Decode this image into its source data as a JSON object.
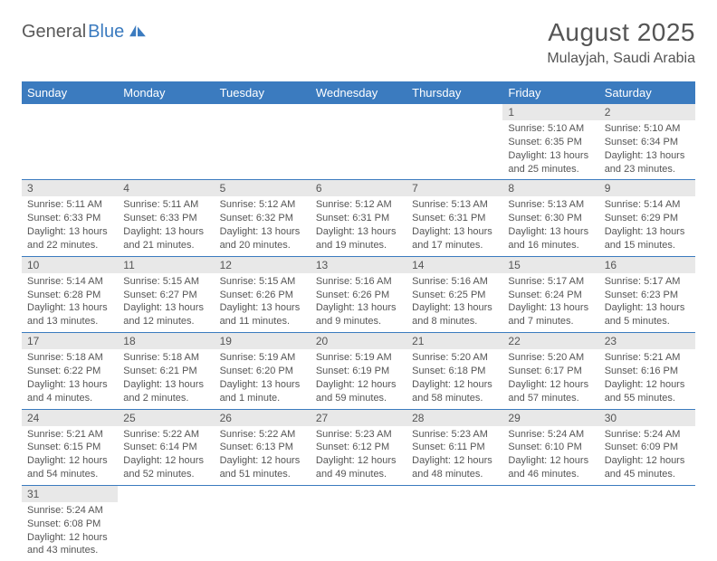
{
  "logo": {
    "part1": "General",
    "part2": "Blue"
  },
  "title": "August 2025",
  "location": "Mulayjah, Saudi Arabia",
  "colors": {
    "header_bg": "#3b7bbf",
    "header_text": "#ffffff",
    "daynum_bg": "#e8e8e8",
    "text": "#555555",
    "border": "#3b7bbf"
  },
  "weekdays": [
    "Sunday",
    "Monday",
    "Tuesday",
    "Wednesday",
    "Thursday",
    "Friday",
    "Saturday"
  ],
  "weeks": [
    [
      null,
      null,
      null,
      null,
      null,
      {
        "n": "1",
        "sunrise": "5:10 AM",
        "sunset": "6:35 PM",
        "daylight": "13 hours and 25 minutes."
      },
      {
        "n": "2",
        "sunrise": "5:10 AM",
        "sunset": "6:34 PM",
        "daylight": "13 hours and 23 minutes."
      }
    ],
    [
      {
        "n": "3",
        "sunrise": "5:11 AM",
        "sunset": "6:33 PM",
        "daylight": "13 hours and 22 minutes."
      },
      {
        "n": "4",
        "sunrise": "5:11 AM",
        "sunset": "6:33 PM",
        "daylight": "13 hours and 21 minutes."
      },
      {
        "n": "5",
        "sunrise": "5:12 AM",
        "sunset": "6:32 PM",
        "daylight": "13 hours and 20 minutes."
      },
      {
        "n": "6",
        "sunrise": "5:12 AM",
        "sunset": "6:31 PM",
        "daylight": "13 hours and 19 minutes."
      },
      {
        "n": "7",
        "sunrise": "5:13 AM",
        "sunset": "6:31 PM",
        "daylight": "13 hours and 17 minutes."
      },
      {
        "n": "8",
        "sunrise": "5:13 AM",
        "sunset": "6:30 PM",
        "daylight": "13 hours and 16 minutes."
      },
      {
        "n": "9",
        "sunrise": "5:14 AM",
        "sunset": "6:29 PM",
        "daylight": "13 hours and 15 minutes."
      }
    ],
    [
      {
        "n": "10",
        "sunrise": "5:14 AM",
        "sunset": "6:28 PM",
        "daylight": "13 hours and 13 minutes."
      },
      {
        "n": "11",
        "sunrise": "5:15 AM",
        "sunset": "6:27 PM",
        "daylight": "13 hours and 12 minutes."
      },
      {
        "n": "12",
        "sunrise": "5:15 AM",
        "sunset": "6:26 PM",
        "daylight": "13 hours and 11 minutes."
      },
      {
        "n": "13",
        "sunrise": "5:16 AM",
        "sunset": "6:26 PM",
        "daylight": "13 hours and 9 minutes."
      },
      {
        "n": "14",
        "sunrise": "5:16 AM",
        "sunset": "6:25 PM",
        "daylight": "13 hours and 8 minutes."
      },
      {
        "n": "15",
        "sunrise": "5:17 AM",
        "sunset": "6:24 PM",
        "daylight": "13 hours and 7 minutes."
      },
      {
        "n": "16",
        "sunrise": "5:17 AM",
        "sunset": "6:23 PM",
        "daylight": "13 hours and 5 minutes."
      }
    ],
    [
      {
        "n": "17",
        "sunrise": "5:18 AM",
        "sunset": "6:22 PM",
        "daylight": "13 hours and 4 minutes."
      },
      {
        "n": "18",
        "sunrise": "5:18 AM",
        "sunset": "6:21 PM",
        "daylight": "13 hours and 2 minutes."
      },
      {
        "n": "19",
        "sunrise": "5:19 AM",
        "sunset": "6:20 PM",
        "daylight": "13 hours and 1 minute."
      },
      {
        "n": "20",
        "sunrise": "5:19 AM",
        "sunset": "6:19 PM",
        "daylight": "12 hours and 59 minutes."
      },
      {
        "n": "21",
        "sunrise": "5:20 AM",
        "sunset": "6:18 PM",
        "daylight": "12 hours and 58 minutes."
      },
      {
        "n": "22",
        "sunrise": "5:20 AM",
        "sunset": "6:17 PM",
        "daylight": "12 hours and 57 minutes."
      },
      {
        "n": "23",
        "sunrise": "5:21 AM",
        "sunset": "6:16 PM",
        "daylight": "12 hours and 55 minutes."
      }
    ],
    [
      {
        "n": "24",
        "sunrise": "5:21 AM",
        "sunset": "6:15 PM",
        "daylight": "12 hours and 54 minutes."
      },
      {
        "n": "25",
        "sunrise": "5:22 AM",
        "sunset": "6:14 PM",
        "daylight": "12 hours and 52 minutes."
      },
      {
        "n": "26",
        "sunrise": "5:22 AM",
        "sunset": "6:13 PM",
        "daylight": "12 hours and 51 minutes."
      },
      {
        "n": "27",
        "sunrise": "5:23 AM",
        "sunset": "6:12 PM",
        "daylight": "12 hours and 49 minutes."
      },
      {
        "n": "28",
        "sunrise": "5:23 AM",
        "sunset": "6:11 PM",
        "daylight": "12 hours and 48 minutes."
      },
      {
        "n": "29",
        "sunrise": "5:24 AM",
        "sunset": "6:10 PM",
        "daylight": "12 hours and 46 minutes."
      },
      {
        "n": "30",
        "sunrise": "5:24 AM",
        "sunset": "6:09 PM",
        "daylight": "12 hours and 45 minutes."
      }
    ],
    [
      {
        "n": "31",
        "sunrise": "5:24 AM",
        "sunset": "6:08 PM",
        "daylight": "12 hours and 43 minutes."
      },
      null,
      null,
      null,
      null,
      null,
      null
    ]
  ],
  "labels": {
    "sunrise": "Sunrise: ",
    "sunset": "Sunset: ",
    "daylight": "Daylight: "
  }
}
